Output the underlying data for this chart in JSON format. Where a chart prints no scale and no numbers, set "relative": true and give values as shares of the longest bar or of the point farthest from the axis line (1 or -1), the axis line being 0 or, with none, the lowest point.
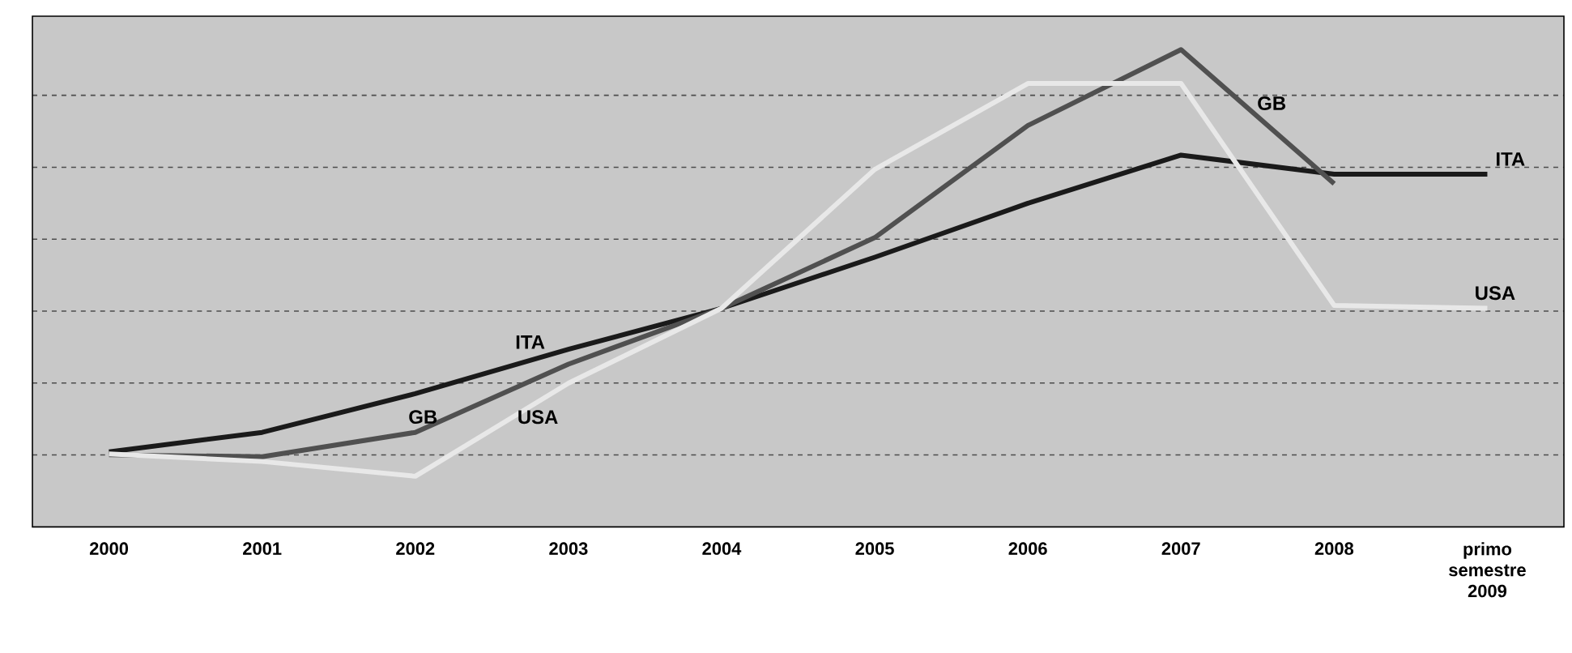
{
  "chart_data": {
    "type": "line",
    "relative": true,
    "grid": "y",
    "categories": [
      "2000",
      "2001",
      "2002",
      "2003",
      "2004",
      "2005",
      "2006",
      "2007",
      "2008",
      "primo semestre 2009"
    ],
    "series": [
      {
        "name": "ITA",
        "color": "#1a1a1a",
        "values": [
          0.157,
          0.198,
          0.279,
          0.372,
          0.458,
          0.565,
          0.678,
          0.779,
          0.739,
          0.739
        ]
      },
      {
        "name": "GB",
        "color": "#505050",
        "values": [
          0.151,
          0.147,
          0.198,
          0.341,
          0.458,
          0.606,
          0.841,
          1,
          0.719,
          null
        ]
      },
      {
        "name": "USA",
        "color": "#e8e8e8",
        "values": [
          0.153,
          0.137,
          0.106,
          0.301,
          0.458,
          0.749,
          0.929,
          0.929,
          0.464,
          0.458
        ]
      }
    ]
  }
}
